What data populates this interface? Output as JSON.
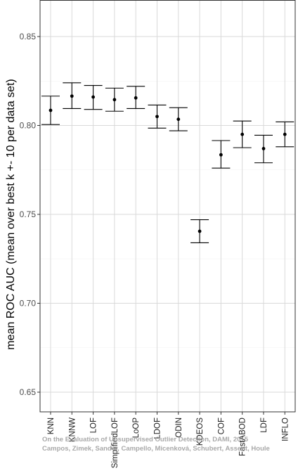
{
  "chart_data": {
    "type": "scatter",
    "subtype": "point-with-error-bars",
    "ylabel": "mean ROC AUC (mean over best k +- 10 per data set)",
    "xlabel": "",
    "ylim": [
      0.64,
      0.87
    ],
    "yticks": [
      0.65,
      0.7,
      0.75,
      0.8,
      0.85
    ],
    "ytick_labels": [
      "0.65",
      "0.70",
      "0.75",
      "0.80",
      "0.85"
    ],
    "grid": true,
    "categories": [
      "KNN",
      "KNNW",
      "LOF",
      "SimplifiedLOF",
      "LoOP",
      "LDOF",
      "ODIN",
      "KDEOS",
      "COF",
      "FastABOD",
      "LDF",
      "INFLO"
    ],
    "series": [
      {
        "mean": [
          0.8085,
          0.8165,
          0.816,
          0.8145,
          0.8155,
          0.805,
          0.8035,
          0.7405,
          0.7835,
          0.795,
          0.787,
          0.795
        ],
        "lower": [
          0.8005,
          0.8095,
          0.809,
          0.808,
          0.8095,
          0.7985,
          0.797,
          0.734,
          0.776,
          0.7875,
          0.779,
          0.788
        ],
        "upper": [
          0.8165,
          0.824,
          0.8225,
          0.821,
          0.822,
          0.8115,
          0.81,
          0.747,
          0.7915,
          0.8025,
          0.7945,
          0.802
        ]
      }
    ]
  },
  "watermark": {
    "line1": "On the Evaluation of Unsupervised Outlier Detection, DAMI, 2015",
    "line2": "Campos, Zimek, Sander, Campello, Micenková, Schubert, Assent, Houle"
  }
}
